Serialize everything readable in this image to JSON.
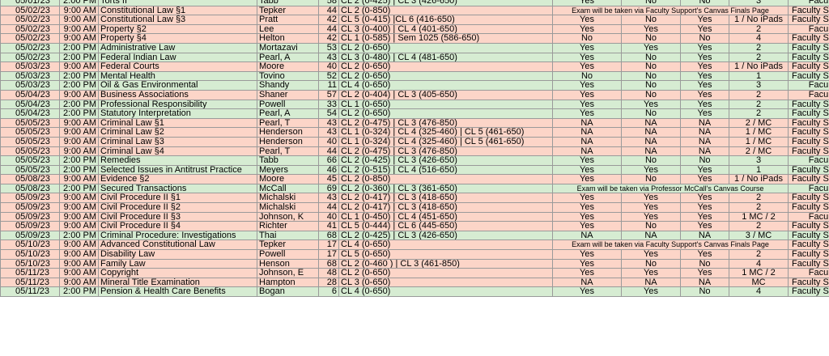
{
  "colors": {
    "rose": "#fcd5c8",
    "green": "#d6ecd2",
    "grid": "#9a9a9a"
  },
  "rows": [
    {
      "date": "05/01/23",
      "time": "2:00 PM",
      "course": "Torts II",
      "prof": "Tabb",
      "n": "58",
      "rooms": "CL 2 (0-425) | CL 3 (426-650)",
      "a": "Yes",
      "b": "No",
      "c": "No",
      "d": "3",
      "loc": "Faculty",
      "color": "green",
      "sep": false
    },
    {
      "date": "05/02/23",
      "time": "9:00 AM",
      "course": "Constitutional Law §1",
      "prof": "Tepker",
      "n": "44",
      "rooms": "CL 2 (0-850)",
      "note": "Exam will be taken via Faculty Support's Canvas Finals Page",
      "loc": "Faculty Support",
      "color": "rose",
      "sep": true
    },
    {
      "date": "05/02/23",
      "time": "9:00 AM",
      "course": "Constitutional Law §3",
      "prof": "Pratt",
      "n": "42",
      "rooms": "CL 5 (0-415) |CL 6 (416-650)",
      "a": "Yes",
      "b": "No",
      "c": "Yes",
      "d": "1 / No iPads",
      "loc": "Faculty Support",
      "color": "rose",
      "sep": false
    },
    {
      "date": "05/02/23",
      "time": "9:00 AM",
      "course": "Property §2",
      "prof": "Lee",
      "n": "44",
      "rooms": "CL 3 (0-400) | CL 4 (401-650)",
      "a": "Yes",
      "b": "Yes",
      "c": "Yes",
      "d": "2",
      "loc": "Faculty",
      "color": "rose",
      "sep": false
    },
    {
      "date": "05/02/23",
      "time": "9:00 AM",
      "course": "Property §4",
      "prof": "Helton",
      "n": "42",
      "rooms": "CL 1 (0-585) | Sem 1025 (586-650)",
      "a": "No",
      "b": "No",
      "c": "No",
      "d": "4",
      "loc": "Faculty Support",
      "color": "rose",
      "sep": false
    },
    {
      "date": "05/02/23",
      "time": "2:00 PM",
      "course": "Administrative Law",
      "prof": "Mortazavi",
      "n": "53",
      "rooms": "CL 2 (0-650)",
      "a": "Yes",
      "b": "Yes",
      "c": "Yes",
      "d": "2",
      "loc": "Faculty Support",
      "color": "green",
      "sep": false
    },
    {
      "date": "05/02/23",
      "time": "2:00 PM",
      "course": "Federal Indian Law",
      "prof": "Pearl, A",
      "n": "43",
      "rooms": "CL 3 (0-480) | CL 4 (481-650)",
      "a": "Yes",
      "b": "No",
      "c": "Yes",
      "d": "2",
      "loc": "Faculty Support",
      "color": "green",
      "sep": false
    },
    {
      "date": "05/03/23",
      "time": "9:00 AM",
      "course": "Federal Courts",
      "prof": "Moore",
      "n": "40",
      "rooms": "CL 2 (0-650)",
      "a": "Yes",
      "b": "No",
      "c": "Yes",
      "d": "1 / No iPads",
      "loc": "Faculty Support",
      "color": "rose",
      "sep": true
    },
    {
      "date": "05/03/23",
      "time": "2:00 PM",
      "course": "Mental Health",
      "prof": "Tovino",
      "n": "52",
      "rooms": "CL 2 (0-650)",
      "a": "No",
      "b": "No",
      "c": "Yes",
      "d": "1",
      "loc": "Faculty Support",
      "color": "green",
      "sep": false
    },
    {
      "date": "05/03/23",
      "time": "2:00 PM",
      "course": "Oil & Gas Environmental",
      "prof": "Shandy",
      "n": "11",
      "rooms": "CL 4 (0-650)",
      "a": "Yes",
      "b": "No",
      "c": "Yes",
      "d": "3",
      "loc": "Faculty",
      "color": "green",
      "sep": false
    },
    {
      "date": "05/04/23",
      "time": "9:00 AM",
      "course": "Business Associations",
      "prof": "Shaner",
      "n": "57",
      "rooms": "CL 2 (0-404) | CL 3 (405-650)",
      "a": "Yes",
      "b": "No",
      "c": "Yes",
      "d": "2",
      "loc": "Faculty",
      "color": "rose",
      "sep": true
    },
    {
      "date": "05/04/23",
      "time": "2:00 PM",
      "course": "Professional Responsibility",
      "prof": "Powell",
      "n": "33",
      "rooms": "CL 1 (0-650)",
      "a": "Yes",
      "b": "Yes",
      "c": "Yes",
      "d": "2",
      "loc": "Faculty Support",
      "color": "green",
      "sep": false
    },
    {
      "date": "05/04/23",
      "time": "2:00 PM",
      "course": "Statutory Interpretation",
      "prof": "Pearl, A",
      "n": "54",
      "rooms": "CL 2 (0-650)",
      "a": "Yes",
      "b": "No",
      "c": "Yes",
      "d": "2",
      "loc": "Faculty Support",
      "color": "green",
      "sep": false
    },
    {
      "date": "05/05/23",
      "time": "9:00 AM",
      "course": "Criminal Law §1",
      "prof": "Pearl, T",
      "n": "43",
      "rooms": "CL 2 (0-475) | CL 3 (476-850)",
      "a": "NA",
      "b": "NA",
      "c": "NA",
      "d": "2 / MC",
      "loc": "Faculty Support",
      "color": "rose",
      "sep": true
    },
    {
      "date": "05/05/23",
      "time": "9:00 AM",
      "course": "Criminal Law §2",
      "prof": "Henderson",
      "n": "43",
      "rooms": "CL 1 (0-324) | CL 4 (325-460) | CL 5 (461-650)",
      "a": "NA",
      "b": "NA",
      "c": "NA",
      "d": "1 / MC",
      "loc": "Faculty Support",
      "color": "rose",
      "sep": false
    },
    {
      "date": "05/05/23",
      "time": "9:00 AM",
      "course": "Criminal Law §3",
      "prof": "Henderson",
      "n": "40",
      "rooms": "CL 1 (0-324) | CL 4 (325-460) | CL 5 (461-650)",
      "a": "NA",
      "b": "NA",
      "c": "NA",
      "d": "1 / MC",
      "loc": "Faculty Support",
      "color": "rose",
      "sep": false
    },
    {
      "date": "05/05/23",
      "time": "9:00 AM",
      "course": "Criminal Law §4",
      "prof": "Pearl, T",
      "n": "44",
      "rooms": "CL 2 (0-475) | CL 3 (476-850)",
      "a": "NA",
      "b": "NA",
      "c": "NA",
      "d": "2 / MC",
      "loc": "Faculty Support",
      "color": "rose",
      "sep": false
    },
    {
      "date": "05/05/23",
      "time": "2:00 PM",
      "course": "Remedies",
      "prof": "Tabb",
      "n": "66",
      "rooms": "CL 2 (0-425) | CL 3 (426-650)",
      "a": "Yes",
      "b": "No",
      "c": "No",
      "d": "3",
      "loc": "Faculty",
      "color": "green",
      "sep": false
    },
    {
      "date": "05/05/23",
      "time": "2:00 PM",
      "course": "Selected Issues in Antitrust Practice",
      "prof": "Meyers",
      "n": "46",
      "rooms": "CL 2 (0-515) | CL 4 (516-650)",
      "a": "Yes",
      "b": "Yes",
      "c": "Yes",
      "d": "1",
      "loc": "Faculty Support",
      "color": "green",
      "sep": false
    },
    {
      "date": "05/08/23",
      "time": "9:00 AM",
      "course": "Evidence §2",
      "prof": "Moore",
      "n": "45",
      "rooms": "CL 2 (0-850)",
      "a": "Yes",
      "b": "No",
      "c": "Yes",
      "d": "1 / No iPads",
      "loc": "Faculty Support",
      "color": "rose",
      "sep": true
    },
    {
      "date": "05/08/23",
      "time": "2:00 PM",
      "course": "Secured Transactions",
      "prof": "McCall",
      "n": "69",
      "rooms": "CL 2 (0-360) | CL 3 (361-650)",
      "note": "Exam will be taken via Professor McCall's Canvas Course",
      "loc": "Faculty",
      "color": "green",
      "sep": false
    },
    {
      "date": "05/09/23",
      "time": "9:00 AM",
      "course": "Civil Procedure II §1",
      "prof": "Michalski",
      "n": "43",
      "rooms": "CL 2 (0-417) | CL 3 (418-650)",
      "a": "Yes",
      "b": "Yes",
      "c": "Yes",
      "d": "2",
      "loc": "Faculty Support",
      "color": "rose",
      "sep": true
    },
    {
      "date": "05/09/23",
      "time": "9:00 AM",
      "course": "Civil Procedure II §2",
      "prof": "Michalski",
      "n": "44",
      "rooms": "CL 2 (0-417) | CL 3 (418-650)",
      "a": "Yes",
      "b": "Yes",
      "c": "Yes",
      "d": "2",
      "loc": "Faculty Support",
      "color": "rose",
      "sep": false
    },
    {
      "date": "05/09/23",
      "time": "9:00 AM",
      "course": "Civil Procedure II §3",
      "prof": "Johnson, K",
      "n": "40",
      "rooms": "CL 1 (0-450) | CL 4 (451-650)",
      "a": "Yes",
      "b": "Yes",
      "c": "Yes",
      "d": "1 MC / 2",
      "loc": "Faculty",
      "color": "rose",
      "sep": false
    },
    {
      "date": "05/09/23",
      "time": "9:00 AM",
      "course": "Civil Procedure II §4",
      "prof": "Richter",
      "n": "41",
      "rooms": "CL 5 (0-444) | CL 6 (445-650)",
      "a": "Yes",
      "b": "No",
      "c": "Yes",
      "d": "2",
      "loc": "Faculty Support",
      "color": "rose",
      "sep": false
    },
    {
      "date": "05/09/23",
      "time": "2:00 PM",
      "course": "Criminal Procedure: Investigations",
      "prof": "Thai",
      "n": "68",
      "rooms": "CL 2 (0-425) | CL 3 (426-650)",
      "a": "NA",
      "b": "NA",
      "c": "NA",
      "d": "3 / MC",
      "loc": "Faculty Support",
      "color": "green",
      "sep": false
    },
    {
      "date": "05/10/23",
      "time": "9:00 AM",
      "course": "Advanced Constitutional Law",
      "prof": "Tepker",
      "n": "17",
      "rooms": "CL 4 (0-650)",
      "note": "Exam will be taken via Faculty Support's Canvas Finals Page",
      "loc": "Faculty Support",
      "color": "rose",
      "sep": true
    },
    {
      "date": "05/10/23",
      "time": "9:00 AM",
      "course": "Disability Law",
      "prof": "Powell",
      "n": "17",
      "rooms": "CL 5 (0-650)",
      "a": "Yes",
      "b": "Yes",
      "c": "Yes",
      "d": "2",
      "loc": "Faculty Support",
      "color": "rose",
      "sep": false
    },
    {
      "date": "05/10/23",
      "time": "9:00 AM",
      "course": "Family Law",
      "prof": "Henson",
      "n": "68",
      "rooms": "CL 2 (0-460 ) | CL 3 (461-850)",
      "a": "Yes",
      "b": "No",
      "c": "No",
      "d": "4",
      "loc": "Faculty Support",
      "color": "rose",
      "sep": false
    },
    {
      "date": "05/11/23",
      "time": "9:00 AM",
      "course": "Copyright",
      "prof": "Johnson, E",
      "n": "48",
      "rooms": "CL 2 (0-650)",
      "a": "Yes",
      "b": "Yes",
      "c": "Yes",
      "d": "1 MC / 2",
      "loc": "Faculty",
      "color": "rose",
      "sep": true
    },
    {
      "date": "05/11/23",
      "time": "9:00 AM",
      "course": "Mineral Title Examination",
      "prof": "Hampton",
      "n": "28",
      "rooms": "CL 3 (0-650)",
      "a": "NA",
      "b": "NA",
      "c": "NA",
      "d": "MC",
      "loc": "Faculty Support",
      "color": "rose",
      "sep": false
    },
    {
      "date": "05/11/23",
      "time": "2:00 PM",
      "course": "Pension & Health Care Benefits",
      "prof": "Bogan",
      "n": "6",
      "rooms": "CL 4 (0-650)",
      "a": "Yes",
      "b": "Yes",
      "c": "No",
      "d": "4",
      "loc": "Faculty Support",
      "color": "green",
      "sep": false
    }
  ]
}
